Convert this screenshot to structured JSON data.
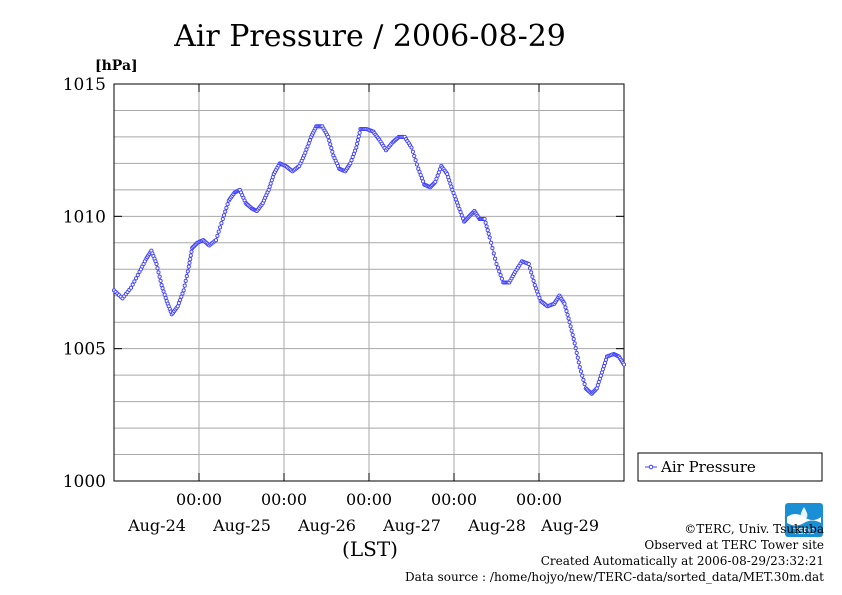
{
  "chart_data": {
    "type": "line",
    "title": "Air Pressure / 2006-08-29",
    "ylabel": "[hPa]",
    "xlabel": "(LST)",
    "ylim": [
      1000,
      1015
    ],
    "y_ticks": [
      {
        "value": 1000,
        "label": "1000"
      },
      {
        "value": 1005,
        "label": "1005"
      },
      {
        "value": 1010,
        "label": "1010"
      },
      {
        "value": 1015,
        "label": "1015"
      }
    ],
    "y_minor_step": 1,
    "xlim": [
      0,
      6.0
    ],
    "x_ticks": [
      {
        "value": 1.0,
        "time": "00:00",
        "date": "Aug-24"
      },
      {
        "value": 2.0,
        "time": "00:00",
        "date": "Aug-25"
      },
      {
        "value": 3.0,
        "time": "00:00",
        "date": "Aug-26"
      },
      {
        "value": 4.0,
        "time": "00:00",
        "date": "Aug-27"
      },
      {
        "value": 5.0,
        "time": "00:00",
        "date": "Aug-28"
      }
    ],
    "x_extra_dates": [
      {
        "value": 5.86,
        "date": "Aug-29"
      }
    ],
    "grid": true,
    "legend_placement": "right",
    "series": [
      {
        "name": "Air Pressure",
        "color": "#4040ff",
        "points": [
          [
            0.0,
            1007.2
          ],
          [
            0.1,
            1006.9
          ],
          [
            0.2,
            1007.3
          ],
          [
            0.3,
            1007.9
          ],
          [
            0.38,
            1008.4
          ],
          [
            0.44,
            1008.7
          ],
          [
            0.5,
            1008.2
          ],
          [
            0.56,
            1007.4
          ],
          [
            0.62,
            1006.8
          ],
          [
            0.68,
            1006.3
          ],
          [
            0.75,
            1006.6
          ],
          [
            0.82,
            1007.2
          ],
          [
            0.88,
            1008.1
          ],
          [
            0.92,
            1008.8
          ],
          [
            0.98,
            1009.0
          ],
          [
            1.05,
            1009.1
          ],
          [
            1.12,
            1008.9
          ],
          [
            1.2,
            1009.1
          ],
          [
            1.28,
            1009.9
          ],
          [
            1.35,
            1010.6
          ],
          [
            1.42,
            1010.9
          ],
          [
            1.48,
            1011.0
          ],
          [
            1.55,
            1010.5
          ],
          [
            1.62,
            1010.3
          ],
          [
            1.68,
            1010.2
          ],
          [
            1.75,
            1010.5
          ],
          [
            1.82,
            1011.0
          ],
          [
            1.88,
            1011.6
          ],
          [
            1.95,
            1012.0
          ],
          [
            2.02,
            1011.9
          ],
          [
            2.1,
            1011.7
          ],
          [
            2.18,
            1011.9
          ],
          [
            2.25,
            1012.4
          ],
          [
            2.32,
            1013.0
          ],
          [
            2.38,
            1013.4
          ],
          [
            2.45,
            1013.4
          ],
          [
            2.52,
            1013.0
          ],
          [
            2.58,
            1012.3
          ],
          [
            2.65,
            1011.8
          ],
          [
            2.72,
            1011.7
          ],
          [
            2.78,
            1012.0
          ],
          [
            2.85,
            1012.6
          ],
          [
            2.9,
            1013.3
          ],
          [
            2.97,
            1013.3
          ],
          [
            3.05,
            1013.2
          ],
          [
            3.12,
            1012.9
          ],
          [
            3.2,
            1012.5
          ],
          [
            3.28,
            1012.8
          ],
          [
            3.35,
            1013.0
          ],
          [
            3.42,
            1013.0
          ],
          [
            3.5,
            1012.6
          ],
          [
            3.58,
            1011.8
          ],
          [
            3.65,
            1011.2
          ],
          [
            3.72,
            1011.1
          ],
          [
            3.78,
            1011.3
          ],
          [
            3.85,
            1011.9
          ],
          [
            3.92,
            1011.6
          ],
          [
            3.98,
            1011.0
          ],
          [
            4.05,
            1010.4
          ],
          [
            4.12,
            1009.8
          ],
          [
            4.18,
            1010.0
          ],
          [
            4.24,
            1010.2
          ],
          [
            4.3,
            1009.9
          ],
          [
            4.36,
            1009.9
          ],
          [
            4.42,
            1009.2
          ],
          [
            4.5,
            1008.2
          ],
          [
            4.58,
            1007.5
          ],
          [
            4.65,
            1007.5
          ],
          [
            4.72,
            1007.9
          ],
          [
            4.8,
            1008.3
          ],
          [
            4.88,
            1008.2
          ],
          [
            4.95,
            1007.4
          ],
          [
            5.02,
            1006.8
          ],
          [
            5.1,
            1006.6
          ],
          [
            5.18,
            1006.7
          ],
          [
            5.24,
            1007.0
          ],
          [
            5.3,
            1006.7
          ],
          [
            5.36,
            1006.0
          ],
          [
            5.42,
            1005.2
          ],
          [
            5.48,
            1004.3
          ],
          [
            5.55,
            1003.5
          ],
          [
            5.62,
            1003.3
          ],
          [
            5.68,
            1003.5
          ],
          [
            5.74,
            1004.1
          ],
          [
            5.8,
            1004.7
          ],
          [
            5.88,
            1004.8
          ],
          [
            5.94,
            1004.7
          ],
          [
            6.0,
            1004.4
          ]
        ]
      }
    ]
  },
  "credits": {
    "copyright": "©TERC, Univ. Tsukuba",
    "observed": "Observed at TERC Tower site",
    "created": "Created Automatically at 2006-08-29/23:32:21",
    "source": "Data source : /home/hojyo/new/TERC-data/sorted_data/MET.30m.dat",
    "logo_text": "TERC"
  }
}
